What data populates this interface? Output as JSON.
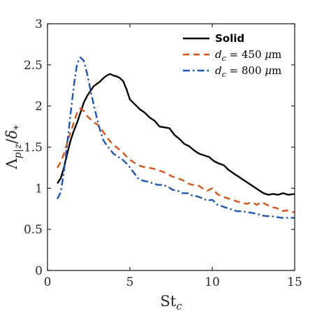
{
  "chart_data": {
    "type": "line",
    "xlabel": "St",
    "xlabel_sub": "c",
    "ylabel": "Λ_{p|z}/δ_*",
    "xlim": [
      0,
      15
    ],
    "ylim": [
      0,
      3
    ],
    "xticks": [
      0,
      5,
      10,
      15
    ],
    "yticks": [
      0,
      0.5,
      1,
      1.5,
      2,
      2.5,
      3
    ],
    "xtick_labels": [
      "0",
      "5",
      "10",
      "15"
    ],
    "ytick_labels": [
      "0",
      "0.5",
      "1",
      "1.5",
      "2",
      "2.5",
      "3"
    ],
    "grid": false,
    "legend_position": "top-right",
    "series": [
      {
        "name": "Solid",
        "color": "#000000",
        "dash": "solid",
        "x": [
          0.6,
          0.8,
          1.0,
          1.2,
          1.4,
          1.6,
          1.8,
          2.0,
          2.2,
          2.4,
          2.6,
          2.8,
          3.0,
          3.2,
          3.4,
          3.6,
          3.8,
          4.0,
          4.2,
          4.4,
          4.6,
          4.8,
          5.0,
          5.3,
          5.6,
          5.9,
          6.2,
          6.5,
          6.8,
          7.1,
          7.4,
          7.7,
          8.0,
          8.3,
          8.6,
          8.9,
          9.2,
          9.5,
          9.8,
          10.1,
          10.4,
          10.7,
          11.0,
          11.3,
          11.6,
          11.9,
          12.2,
          12.5,
          12.8,
          13.1,
          13.4,
          13.7,
          14.0,
          14.3,
          14.6,
          15.0
        ],
        "y": [
          1.06,
          1.12,
          1.25,
          1.42,
          1.58,
          1.7,
          1.8,
          1.92,
          2.04,
          2.12,
          2.18,
          2.24,
          2.27,
          2.3,
          2.34,
          2.37,
          2.39,
          2.37,
          2.36,
          2.34,
          2.3,
          2.2,
          2.08,
          2.02,
          1.96,
          1.92,
          1.86,
          1.82,
          1.75,
          1.74,
          1.73,
          1.65,
          1.6,
          1.54,
          1.51,
          1.46,
          1.42,
          1.4,
          1.38,
          1.33,
          1.3,
          1.28,
          1.22,
          1.18,
          1.14,
          1.1,
          1.06,
          1.02,
          0.98,
          0.94,
          0.92,
          0.93,
          0.92,
          0.94,
          0.92,
          0.93
        ]
      },
      {
        "name": "d_c = 450 μm",
        "color": "#D95319",
        "dash": "dashed",
        "x": [
          0.6,
          0.8,
          1.0,
          1.2,
          1.4,
          1.6,
          1.8,
          2.0,
          2.2,
          2.4,
          2.6,
          2.8,
          3.0,
          3.2,
          3.4,
          3.6,
          3.8,
          4.0,
          4.3,
          4.6,
          4.9,
          5.2,
          5.5,
          5.8,
          6.1,
          6.4,
          6.7,
          7.0,
          7.3,
          7.6,
          7.9,
          8.2,
          8.5,
          8.8,
          9.1,
          9.4,
          9.7,
          10.0,
          10.3,
          10.6,
          10.9,
          11.2,
          11.5,
          11.8,
          12.1,
          12.4,
          12.7,
          13.0,
          13.3,
          13.6,
          13.9,
          14.2,
          14.5,
          14.8,
          15.0
        ],
        "y": [
          1.25,
          1.32,
          1.42,
          1.55,
          1.68,
          1.8,
          1.92,
          1.97,
          1.94,
          1.88,
          1.84,
          1.8,
          1.78,
          1.74,
          1.68,
          1.62,
          1.57,
          1.53,
          1.48,
          1.43,
          1.36,
          1.32,
          1.28,
          1.26,
          1.25,
          1.24,
          1.22,
          1.2,
          1.17,
          1.14,
          1.12,
          1.1,
          1.06,
          1.04,
          1.04,
          1.0,
          0.97,
          1.0,
          0.93,
          0.9,
          0.88,
          0.86,
          0.84,
          0.82,
          0.81,
          0.83,
          0.8,
          0.83,
          0.8,
          0.77,
          0.76,
          0.72,
          0.73,
          0.71,
          0.71
        ]
      },
      {
        "name": "d_c = 800 μm",
        "color": "#1F56B5",
        "dash": "dashdot",
        "x": [
          0.6,
          0.8,
          1.0,
          1.2,
          1.4,
          1.6,
          1.8,
          2.0,
          2.2,
          2.4,
          2.6,
          2.8,
          3.0,
          3.2,
          3.4,
          3.6,
          3.8,
          4.0,
          4.3,
          4.6,
          4.9,
          5.2,
          5.5,
          5.8,
          6.1,
          6.4,
          6.7,
          7.0,
          7.3,
          7.6,
          7.9,
          8.2,
          8.5,
          8.8,
          9.1,
          9.4,
          9.7,
          10.0,
          10.3,
          10.6,
          10.9,
          11.2,
          11.5,
          11.8,
          12.1,
          12.4,
          12.7,
          13.0,
          13.3,
          13.6,
          13.9,
          14.2,
          14.5,
          14.8,
          15.0
        ],
        "y": [
          0.87,
          0.95,
          1.2,
          1.55,
          1.9,
          2.25,
          2.52,
          2.59,
          2.55,
          2.4,
          2.2,
          2.02,
          1.85,
          1.7,
          1.58,
          1.52,
          1.47,
          1.42,
          1.38,
          1.34,
          1.28,
          1.2,
          1.12,
          1.09,
          1.08,
          1.06,
          1.04,
          1.04,
          1.02,
          0.98,
          0.97,
          0.94,
          0.94,
          0.91,
          0.9,
          0.88,
          0.85,
          0.86,
          0.8,
          0.78,
          0.76,
          0.74,
          0.72,
          0.72,
          0.71,
          0.7,
          0.69,
          0.67,
          0.66,
          0.66,
          0.65,
          0.64,
          0.64,
          0.64,
          0.64
        ]
      }
    ]
  }
}
